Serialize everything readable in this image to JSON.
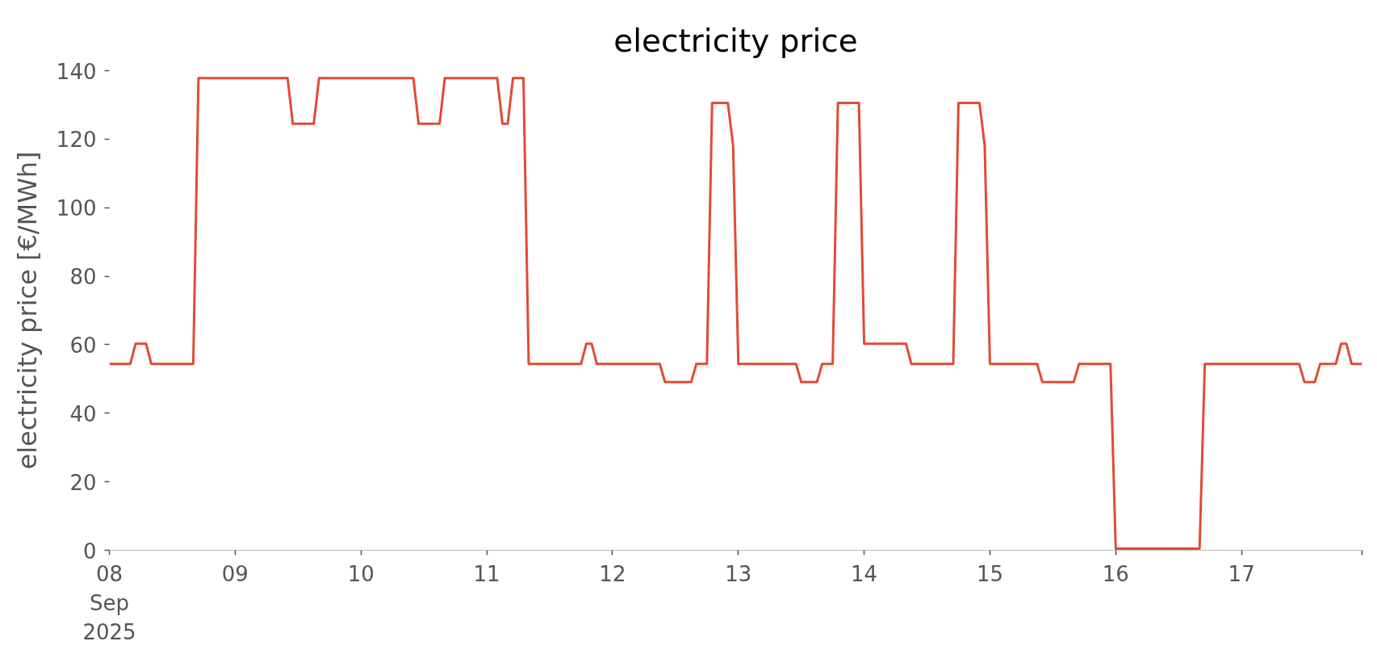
{
  "chart_data": {
    "type": "line",
    "title": "electricity price",
    "ylabel": "electricity price [€/MWh]",
    "x": [
      "2025-09-08T00:00",
      "2025-09-08T04:00",
      "2025-09-08T05:00",
      "2025-09-08T07:00",
      "2025-09-08T08:00",
      "2025-09-08T16:00",
      "2025-09-08T17:00",
      "2025-09-09T10:00",
      "2025-09-09T11:00",
      "2025-09-09T15:00",
      "2025-09-09T16:00",
      "2025-09-10T10:00",
      "2025-09-10T11:00",
      "2025-09-10T15:00",
      "2025-09-10T16:00",
      "2025-09-11T02:00",
      "2025-09-11T03:00",
      "2025-09-11T04:00",
      "2025-09-11T05:00",
      "2025-09-11T07:00",
      "2025-09-11T08:00",
      "2025-09-11T18:00",
      "2025-09-11T19:00",
      "2025-09-11T20:00",
      "2025-09-11T21:00",
      "2025-09-12T09:00",
      "2025-09-12T10:00",
      "2025-09-12T15:00",
      "2025-09-12T16:00",
      "2025-09-12T18:00",
      "2025-09-12T19:00",
      "2025-09-12T22:00",
      "2025-09-12T23:00",
      "2025-09-13T00:00",
      "2025-09-13T11:00",
      "2025-09-13T12:00",
      "2025-09-13T15:00",
      "2025-09-13T16:00",
      "2025-09-13T18:00",
      "2025-09-13T19:00",
      "2025-09-13T23:00",
      "2025-09-14T00:00",
      "2025-09-14T08:00",
      "2025-09-14T09:00",
      "2025-09-14T17:00",
      "2025-09-14T18:00",
      "2025-09-14T22:00",
      "2025-09-14T23:00",
      "2025-09-15T00:00",
      "2025-09-15T09:00",
      "2025-09-15T10:00",
      "2025-09-15T16:00",
      "2025-09-15T17:00",
      "2025-09-15T23:00",
      "2025-09-16T00:00",
      "2025-09-16T16:00",
      "2025-09-16T17:00",
      "2025-09-17T11:00",
      "2025-09-17T12:00",
      "2025-09-17T14:00",
      "2025-09-17T15:00",
      "2025-09-17T18:00",
      "2025-09-17T19:00",
      "2025-09-17T20:00",
      "2025-09-17T21:00",
      "2025-09-17T23:00"
    ],
    "series": [
      {
        "color": "#e24a33",
        "values": [
          54.4,
          54.4,
          60.3,
          60.3,
          54.4,
          54.4,
          137.8,
          137.8,
          124.5,
          124.5,
          137.8,
          137.8,
          124.5,
          124.5,
          137.8,
          137.8,
          124.5,
          124.5,
          137.8,
          137.8,
          54.4,
          54.4,
          60.3,
          60.3,
          54.4,
          54.4,
          49.1,
          49.1,
          54.4,
          54.4,
          130.6,
          130.6,
          118.2,
          54.4,
          54.4,
          49.1,
          49.1,
          54.4,
          54.4,
          130.6,
          130.6,
          60.3,
          60.3,
          54.4,
          54.4,
          130.6,
          130.6,
          118.2,
          54.4,
          54.4,
          49.1,
          49.1,
          54.4,
          54.4,
          0.5,
          0.5,
          54.4,
          54.4,
          49.1,
          49.1,
          54.4,
          54.4,
          60.3,
          60.3,
          54.4,
          54.4
        ]
      }
    ],
    "xlim": [
      "2025-09-08T00:00",
      "2025-09-17T23:00"
    ],
    "xticks": [
      {
        "value": "2025-09-08",
        "label": "08\nSep\n2025"
      },
      {
        "value": "2025-09-09",
        "label": "09"
      },
      {
        "value": "2025-09-10",
        "label": "10"
      },
      {
        "value": "2025-09-11",
        "label": "11"
      },
      {
        "value": "2025-09-12",
        "label": "12"
      },
      {
        "value": "2025-09-13",
        "label": "13"
      },
      {
        "value": "2025-09-14",
        "label": "14"
      },
      {
        "value": "2025-09-15",
        "label": "15"
      },
      {
        "value": "2025-09-16",
        "label": "16"
      },
      {
        "value": "2025-09-17",
        "label": "17"
      },
      {
        "value": "2025-09-17T23:00",
        "label": null
      }
    ],
    "ylim": [
      0,
      140
    ],
    "yticks": [
      0,
      20,
      40,
      60,
      80,
      100,
      120,
      140
    ],
    "grid": false,
    "line_style": "solid"
  }
}
